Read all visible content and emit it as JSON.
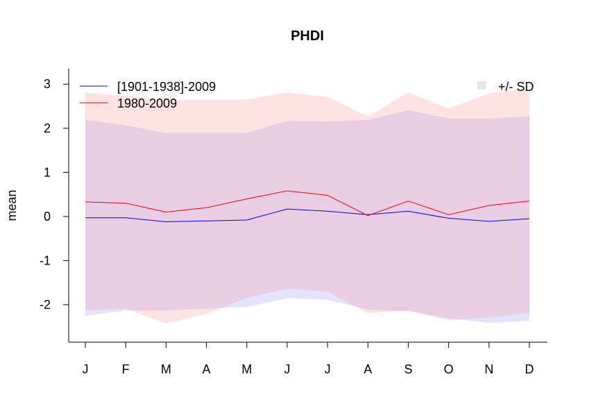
{
  "chart_data": {
    "type": "line",
    "title": "PHDI",
    "xlabel": "",
    "ylabel": "mean",
    "categories": [
      "J",
      "F",
      "M",
      "A",
      "M",
      "J",
      "J",
      "A",
      "S",
      "O",
      "N",
      "D"
    ],
    "ylim": [
      -2.85,
      3.35
    ],
    "yticks": [
      -2,
      -1,
      0,
      1,
      2,
      3
    ],
    "grid": false,
    "series": [
      {
        "name": "[1901-1938]-2009",
        "color": "#0000ff",
        "band_color": "#8080ff",
        "values": [
          -0.03,
          -0.03,
          -0.12,
          -0.1,
          -0.08,
          0.17,
          0.12,
          0.04,
          0.12,
          -0.04,
          -0.11,
          -0.05
        ],
        "upper": [
          2.19,
          2.07,
          1.89,
          1.89,
          1.89,
          2.17,
          2.15,
          2.19,
          2.41,
          2.22,
          2.22,
          2.27
        ],
        "lower": [
          -2.25,
          -2.13,
          -2.13,
          -2.09,
          -2.05,
          -1.85,
          -1.89,
          -2.11,
          -2.15,
          -2.31,
          -2.41,
          -2.37
        ]
      },
      {
        "name": "1980-2009",
        "color": "#ff0000",
        "band_color": "#ff8080",
        "values": [
          0.33,
          0.3,
          0.1,
          0.2,
          0.4,
          0.58,
          0.48,
          0.02,
          0.35,
          0.04,
          0.25,
          0.35
        ],
        "upper": [
          2.81,
          2.73,
          2.65,
          2.65,
          2.65,
          2.81,
          2.71,
          2.27,
          2.81,
          2.45,
          2.79,
          2.91
        ],
        "lower": [
          -2.13,
          -2.09,
          -2.43,
          -2.21,
          -1.85,
          -1.63,
          -1.71,
          -2.19,
          -2.13,
          -2.35,
          -2.29,
          -2.19
        ]
      }
    ],
    "legend": {
      "position": "top-left",
      "band_label": "+/- SD",
      "band_position": "top-right",
      "band_swatch_color": "#e6e6e6"
    }
  }
}
